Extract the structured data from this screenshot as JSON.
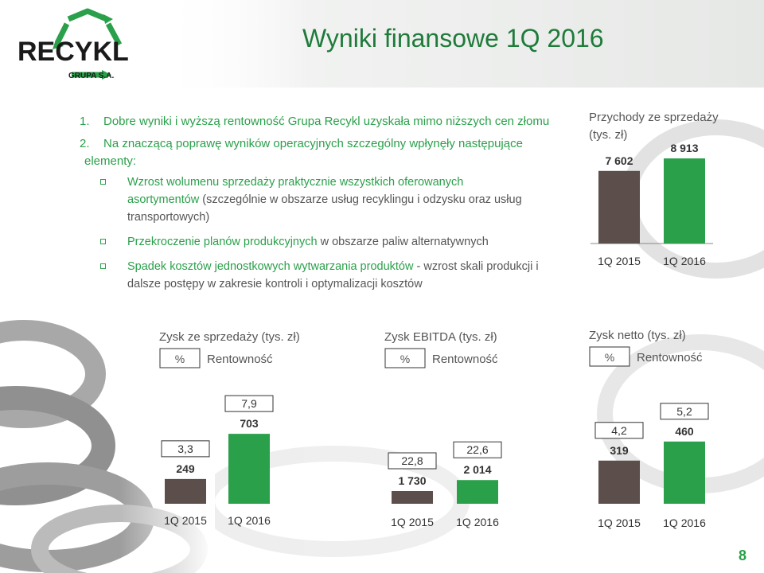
{
  "title": "Wyniki finansowe 1Q 2016",
  "logo": {
    "text": "RECYKL",
    "subtext": "GRUPA S.A."
  },
  "intro": [
    {
      "num": "1.",
      "text": "Dobre wyniki i wyższą rentowność Grupa Recykl uzyskała mimo niższych cen złomu",
      "cont": ""
    },
    {
      "num": "2.",
      "text": "Na znaczącą poprawę wyników operacyjnych szczególny wpłynęły następujące",
      "cont": "elementy:"
    }
  ],
  "bullets": [
    {
      "highlight_a": "Wzrost wolumenu sprzedaży praktycznie wszystkich oferowanych",
      "highlight_b": "asortymentów",
      "rest": " (szczególnie w obszarze usług recyklingu i odzysku oraz usług transportowych)"
    },
    {
      "highlight_a": "Przekroczenie planów produkcyjnych",
      "highlight_b": "",
      "rest": " w obszarze paliw alternatywnych"
    },
    {
      "highlight_a": "Spadek kosztów jednostkowych wytwarzania produktów",
      "highlight_b": "",
      "rest": " - wzrost skali produkcji i dalsze postępy  w zakresie kontroli i optymalizacji kosztów"
    }
  ],
  "legend_label": "Rentowność",
  "legend_symbol": "%",
  "colors": {
    "green": "#2aa04a",
    "dark": "#5c4e4b",
    "text_green": "#1e7b3a",
    "grey_text": "#555555"
  },
  "chart_data": [
    {
      "type": "bar",
      "title_line1": "Przychody ze sprzedaży",
      "title_line2": "(tys. zł)",
      "categories": [
        "1Q 2015",
        "1Q 2016"
      ],
      "values": [
        7602,
        8913
      ],
      "value_labels": [
        "7 602",
        "8 913"
      ]
    },
    {
      "type": "bar",
      "title": "Zysk ze sprzedaży (tys. zł)",
      "categories": [
        "1Q 2015",
        "1Q 2016"
      ],
      "values": [
        249,
        703
      ],
      "value_labels": [
        "249",
        "703"
      ],
      "margins": [
        "3,3",
        "7,9"
      ]
    },
    {
      "type": "bar",
      "title": "Zysk EBITDA (tys. zł)",
      "categories": [
        "1Q 2015",
        "1Q 2016"
      ],
      "values": [
        1730,
        2014
      ],
      "value_labels": [
        "1 730",
        "2 014"
      ],
      "margins": [
        "22,8",
        "22,6"
      ]
    },
    {
      "type": "bar",
      "title": "Zysk netto (tys. zł)",
      "categories": [
        "1Q 2015",
        "1Q 2016"
      ],
      "values": [
        319,
        460
      ],
      "value_labels": [
        "319",
        "460"
      ],
      "margins": [
        "4,2",
        "5,2"
      ]
    }
  ],
  "page_number": "8"
}
